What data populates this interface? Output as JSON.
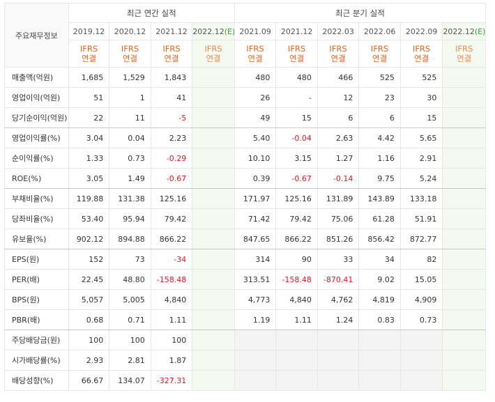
{
  "table": {
    "corner": "주요재무정보",
    "groups": [
      "최근 연간 실적",
      "최근 분기 실적"
    ],
    "periods": [
      {
        "text": "2019.12"
      },
      {
        "text": "2020.12"
      },
      {
        "text": "2021.12"
      },
      {
        "text": "2022.12",
        "estimate": "(E)"
      },
      {
        "text": "2021.09"
      },
      {
        "text": "2021.12"
      },
      {
        "text": "2022.03"
      },
      {
        "text": "2022.06"
      },
      {
        "text": "2022.09"
      },
      {
        "text": "2022.12",
        "estimate": "(E)"
      }
    ],
    "basis": [
      [
        "IFRS",
        "연결"
      ],
      [
        "IFRS",
        "연결"
      ],
      [
        "IFRS",
        "연결"
      ],
      [
        "IFRS",
        "연결"
      ],
      [
        "IFRS",
        "연결"
      ],
      [
        "IFRS",
        "연결"
      ],
      [
        "IFRS",
        "연결"
      ],
      [
        "IFRS",
        "연결"
      ],
      [
        "IFRS",
        "연결"
      ],
      [
        "IFRS",
        "연결"
      ]
    ],
    "rows": [
      {
        "label": "매출액(억원)",
        "values": [
          "1,685",
          "1,529",
          "1,843",
          null,
          "480",
          "480",
          "466",
          "525",
          "525",
          null
        ]
      },
      {
        "label": "영업이익(억원)",
        "values": [
          "51",
          "1",
          "41",
          null,
          "26",
          "-",
          "12",
          "23",
          "30",
          null
        ]
      },
      {
        "label": "당기순이익(억원)",
        "values": [
          "22",
          "11",
          "-5",
          null,
          "49",
          "15",
          "6",
          "6",
          "15",
          null
        ]
      },
      {
        "label": "영업이익률(%)",
        "values": [
          "3.04",
          "0.04",
          "2.23",
          null,
          "5.40",
          "-0.04",
          "2.63",
          "4.42",
          "5.65",
          null
        ]
      },
      {
        "label": "순이익률(%)",
        "values": [
          "1.33",
          "0.73",
          "-0.29",
          null,
          "10.10",
          "3.15",
          "1.27",
          "1.16",
          "2.91",
          null
        ]
      },
      {
        "label": "ROE(%)",
        "values": [
          "3.05",
          "1.49",
          "-0.67",
          null,
          "0.39",
          "-0.67",
          "-0.14",
          "9.75",
          "5.24",
          null
        ]
      },
      {
        "label": "부채비율(%)",
        "values": [
          "119.88",
          "131.38",
          "125.16",
          null,
          "171.97",
          "125.16",
          "131.89",
          "143.89",
          "133.18",
          null
        ]
      },
      {
        "label": "당좌비율(%)",
        "values": [
          "53.40",
          "95.94",
          "79.42",
          null,
          "71.42",
          "79.42",
          "75.06",
          "61.28",
          "51.91",
          null
        ]
      },
      {
        "label": "유보율(%)",
        "values": [
          "902.12",
          "894.88",
          "866.22",
          null,
          "847.65",
          "866.22",
          "851.26",
          "856.42",
          "872.77",
          null
        ]
      },
      {
        "label": "EPS(원)",
        "values": [
          "152",
          "73",
          "-34",
          null,
          "314",
          "90",
          "33",
          "34",
          "82",
          null
        ]
      },
      {
        "label": "PER(배)",
        "values": [
          "22.45",
          "48.80",
          "-158.48",
          null,
          "313.51",
          "-158.48",
          "-870.41",
          "9.02",
          "15.05",
          null
        ]
      },
      {
        "label": "BPS(원)",
        "values": [
          "5,057",
          "5,005",
          "4,840",
          null,
          "4,773",
          "4,840",
          "4,762",
          "4,819",
          "4,909",
          null
        ]
      },
      {
        "label": "PBR(배)",
        "values": [
          "0.68",
          "0.71",
          "1.11",
          null,
          "1.19",
          "1.11",
          "1.24",
          "0.83",
          "0.73",
          null
        ]
      },
      {
        "label": "주당배당금(원)",
        "values": [
          "100",
          "100",
          "100",
          null,
          null,
          null,
          null,
          null,
          null,
          null
        ]
      },
      {
        "label": "시가배당률(%)",
        "values": [
          "2.93",
          "2.81",
          "1.87",
          null,
          null,
          null,
          null,
          null,
          null,
          null
        ]
      },
      {
        "label": "배당성향(%)",
        "values": [
          "66.67",
          "134.07",
          "-327.31",
          null,
          null,
          null,
          null,
          null,
          null,
          null
        ]
      }
    ]
  }
}
